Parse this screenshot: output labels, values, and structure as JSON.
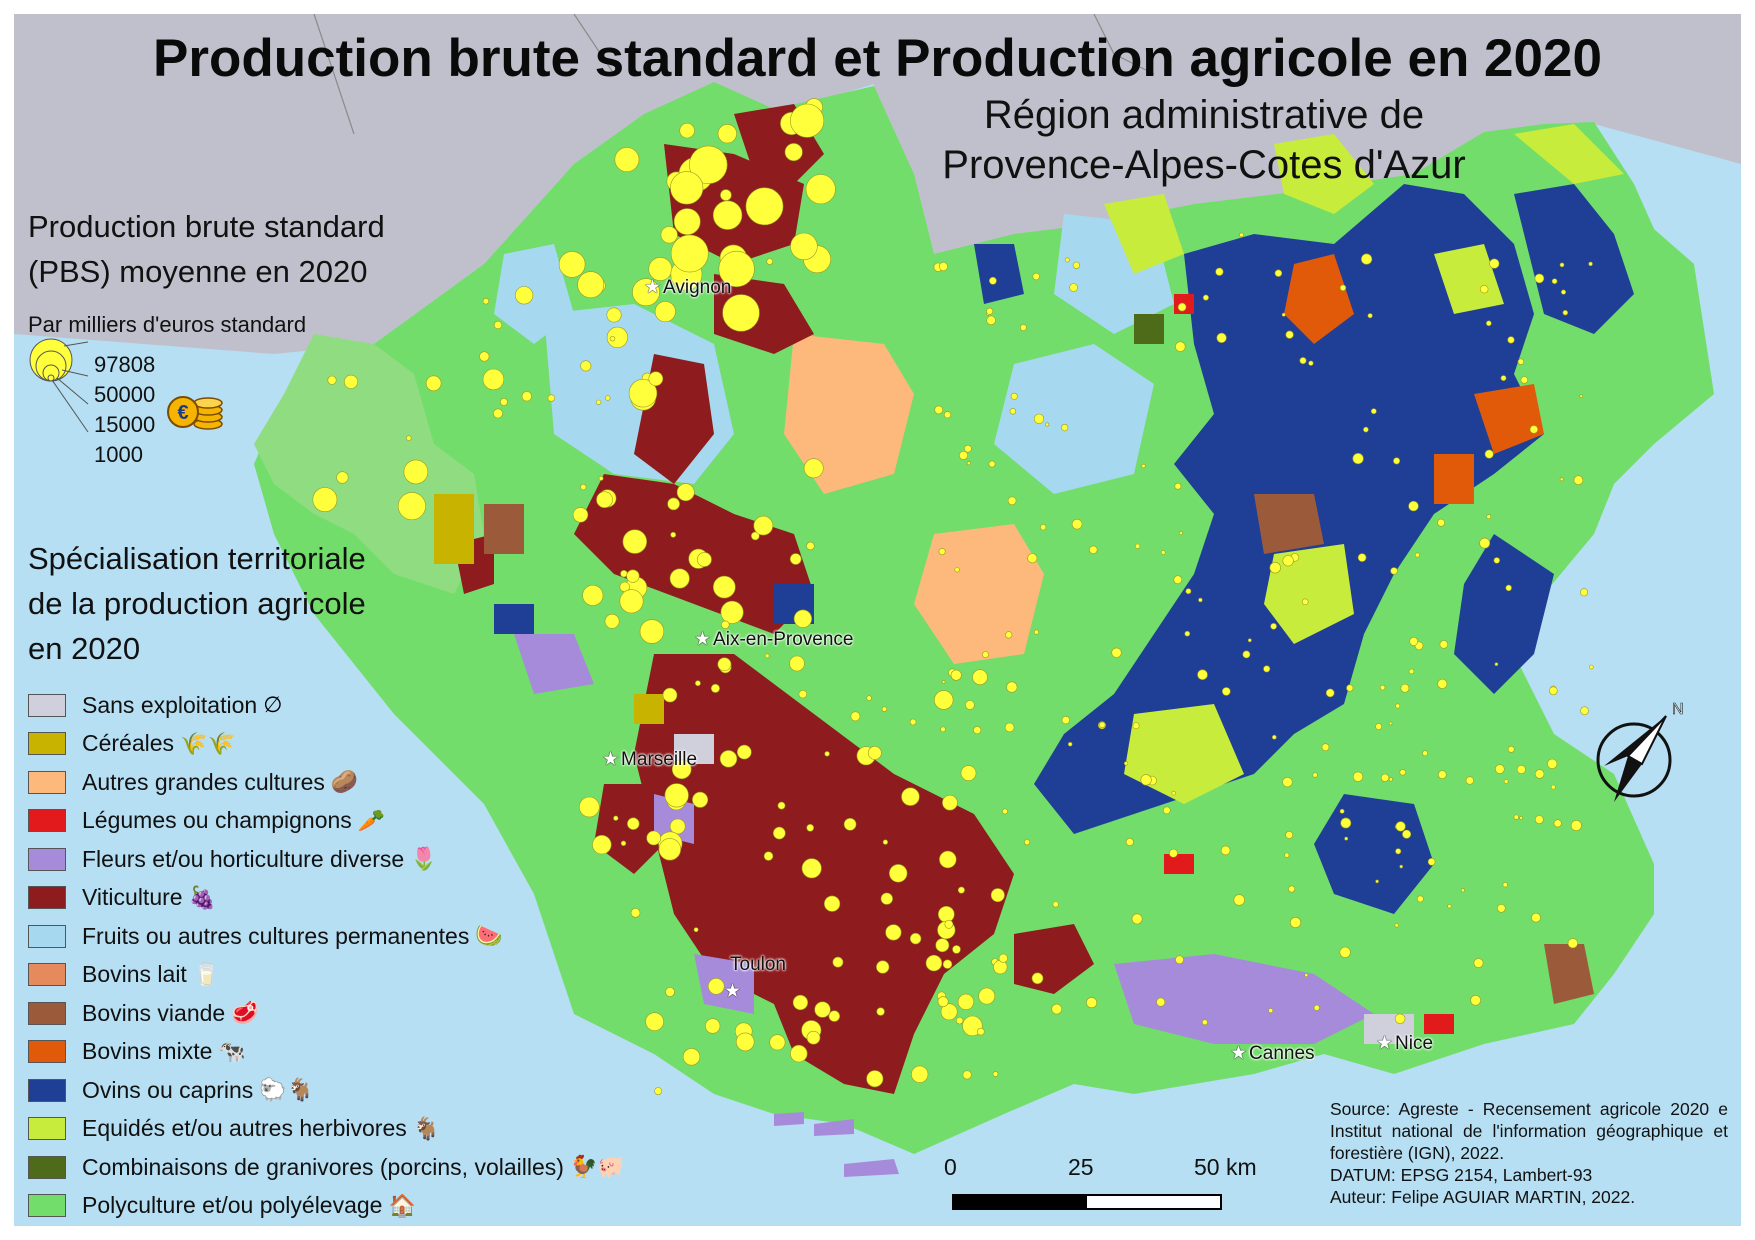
{
  "title": "Production brute standard et Production agricole en 2020",
  "subtitle_line1": "Région administrative de",
  "subtitle_line2": "Provence-Alpes-Cotes d'Azur",
  "pbs_legend": {
    "title_line1": "Production brute standard",
    "title_line2": "(PBS) moyenne en 2020",
    "unit": "Par milliers d'euros standard",
    "values": [
      "97808",
      "50000",
      "15000",
      "1000"
    ],
    "icon": "coins-euro-icon"
  },
  "spec_legend": {
    "title_line1": "Spécialisation territoriale",
    "title_line2": "de la production agricole",
    "title_line3": "en 2020",
    "items": [
      {
        "label": "Sans exploitation",
        "color": "#cfd0dc",
        "icon": "empty-set-icon"
      },
      {
        "label": "Céréales",
        "color": "#c8b400",
        "icon": "wheat-icon"
      },
      {
        "label": "Autres grandes cultures",
        "color": "#fdb97c",
        "icon": "vegetables-soil-icon"
      },
      {
        "label": "Légumes ou champignons",
        "color": "#e31a1c",
        "icon": "vegetable-crate-icon"
      },
      {
        "label": "Fleurs et/ou horticulture diverse",
        "color": "#a78bdb",
        "icon": "flower-icon"
      },
      {
        "label": "Viticulture",
        "color": "#8e1b1e",
        "icon": "wine-grapes-icon"
      },
      {
        "label": "Fruits ou autres cultures permanentes",
        "color": "#a6d8ef",
        "icon": "fruit-icon"
      },
      {
        "label": "Bovins lait",
        "color": "#e58a5c",
        "icon": "milk-bottle-icon"
      },
      {
        "label": "Bovins viande",
        "color": "#9b5a3a",
        "icon": "meat-icon"
      },
      {
        "label": "Bovins mixte",
        "color": "#e05a0a",
        "icon": "cow-icon"
      },
      {
        "label": "Ovins ou caprins",
        "color": "#1f3f96",
        "icon": "sheep-goat-icon"
      },
      {
        "label": "Equidés et/ou autres herbivores",
        "color": "#c8ec3c",
        "icon": "goat-head-icon"
      },
      {
        "label": "Combinaisons de granivores (porcins, volailles)",
        "color": "#4e6b1a",
        "icon": "chicken-pig-icon"
      },
      {
        "label": "Polyculture et/ou polyélevage",
        "color": "#72dd6a",
        "icon": "barn-icon"
      }
    ]
  },
  "cities": [
    "Avignon",
    "Aix-en-Provence",
    "Marseille",
    "Toulon",
    "Cannes",
    "Nice"
  ],
  "scale": {
    "labels": [
      "0",
      "25",
      "50 km"
    ]
  },
  "source": {
    "line1": "Source: Agreste - Recensement agricole 2020 e Institut national de l'information géographique et forestière (IGN), 2022.",
    "line2": "DATUM: EPSG 2154, Lambert-93",
    "line3": "Auteur: Felipe AGUIAR MARTIN, 2022."
  },
  "colors": {
    "sea": "#b6dff3",
    "land_outside": "#c0c0cc",
    "border_lines": "#8a8a8a",
    "proportional_circle": "#ffff3c"
  }
}
